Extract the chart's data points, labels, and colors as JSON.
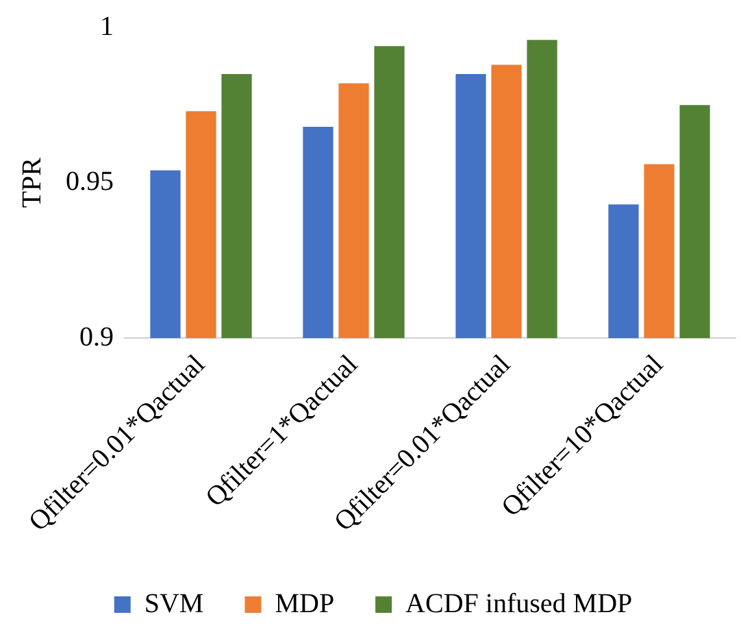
{
  "chart_data": {
    "type": "bar",
    "ylabel": "TPR",
    "categories": [
      "Qfilter=0.01*Qactual",
      "Qfilter=1*Qactual",
      "Qfilter=0.01*Qactual",
      "Qfilter=10*Qactual"
    ],
    "series": [
      {
        "name": "SVM",
        "color": "#4472c4",
        "values": [
          0.954,
          0.968,
          0.985,
          0.943
        ]
      },
      {
        "name": "MDP",
        "color": "#ed7d31",
        "values": [
          0.973,
          0.982,
          0.988,
          0.956
        ]
      },
      {
        "name": "ACDF infused MDP",
        "color": "#548235",
        "values": [
          0.985,
          0.994,
          0.996,
          0.975
        ]
      }
    ],
    "ylim": [
      0.9,
      1
    ],
    "yticks": [
      0.9,
      0.95,
      1
    ],
    "grid": false,
    "legend": "bottom"
  }
}
